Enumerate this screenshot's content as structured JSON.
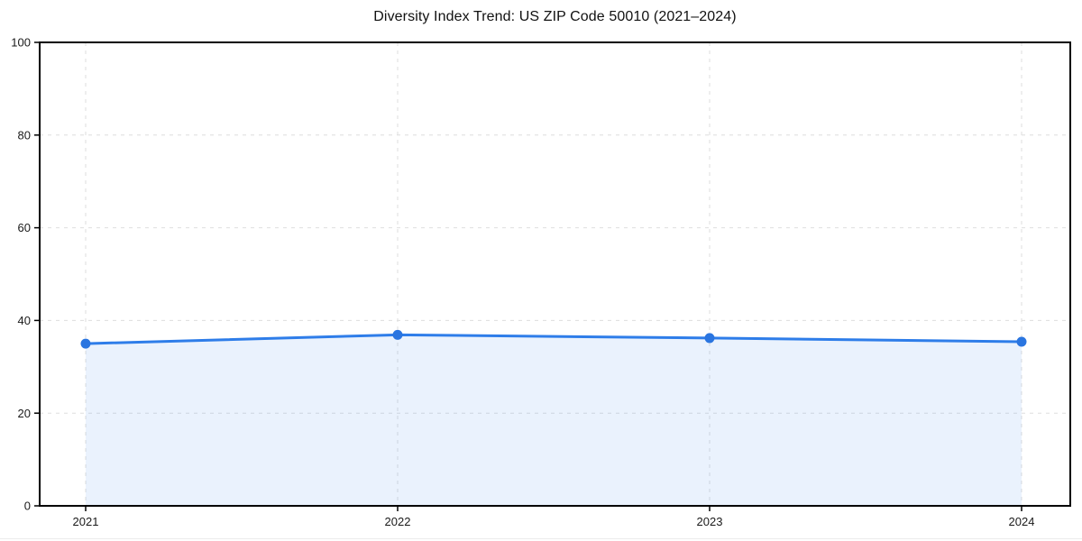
{
  "chart_data": {
    "type": "area",
    "title": "Diversity Index Trend: US ZIP Code 50010 (2021–2024)",
    "x": [
      2021,
      2022,
      2023,
      2024
    ],
    "xtick_labels": [
      "2021",
      "2022",
      "2023",
      "2024"
    ],
    "series": [
      {
        "name": "Diversity Index",
        "values": [
          35.0,
          36.9,
          36.2,
          35.4
        ]
      }
    ],
    "xlabel": "",
    "ylabel": "",
    "ylim": [
      0,
      100
    ],
    "yticks": [
      0,
      20,
      40,
      60,
      80,
      100
    ],
    "grid": true,
    "grid_style": "dashed",
    "legend_position": "none",
    "line_color": "#2e7de9",
    "marker_color": "#2a75e0",
    "fill_color": "#2e7de9",
    "fill_opacity": 0.1,
    "spine_color": "#000000",
    "gridline_color": "#dedede",
    "tick_label_color": "#1a1a1a"
  }
}
